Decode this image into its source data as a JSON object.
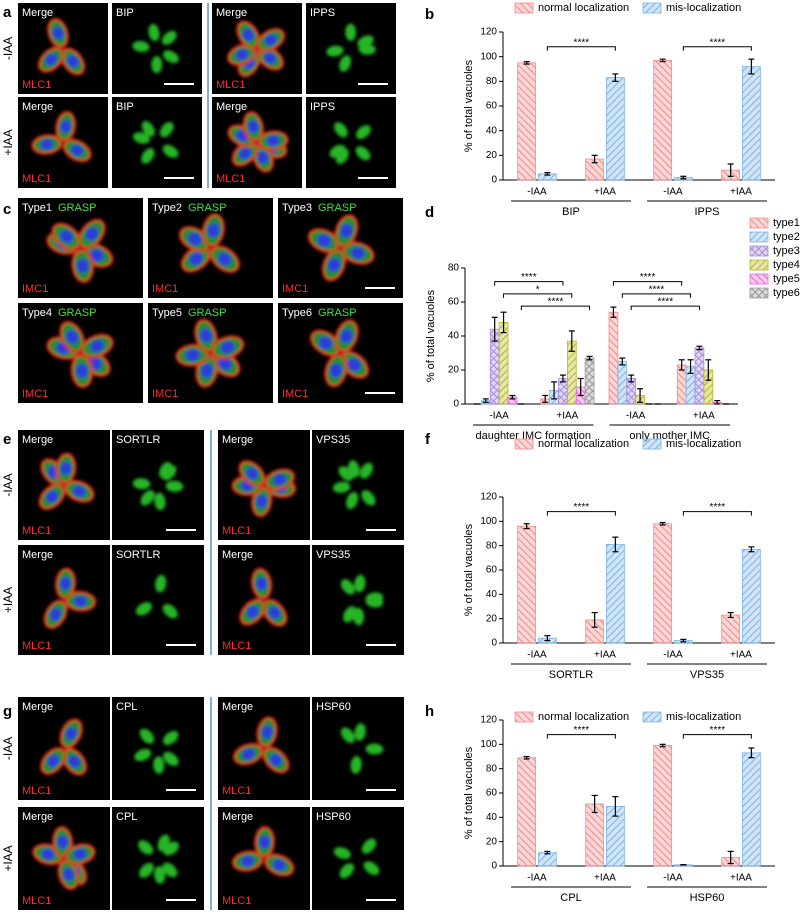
{
  "image_panels": [
    {
      "letter": "a",
      "row_labels": [
        "-IAA",
        "+IAA"
      ],
      "rows": [
        [
          {
            "label": "Merge",
            "marker": "MLC1"
          },
          {
            "label": "BIP"
          },
          {
            "label": "Merge",
            "marker": "MLC1"
          },
          {
            "label": "IPPS"
          }
        ],
        [
          {
            "label": "Merge",
            "marker": "MLC1"
          },
          {
            "label": "BIP"
          },
          {
            "label": "Merge",
            "marker": "MLC1"
          },
          {
            "label": "IPPS"
          }
        ]
      ]
    },
    {
      "letter": "c",
      "rows": [
        [
          {
            "label": "Type1",
            "stain": "GRASP",
            "marker": "IMC1"
          },
          {
            "label": "Type2",
            "stain": "GRASP",
            "marker": "IMC1"
          },
          {
            "label": "Type3",
            "stain": "GRASP",
            "marker": "IMC1"
          }
        ],
        [
          {
            "label": "Type4",
            "stain": "GRASP",
            "marker": "IMC1"
          },
          {
            "label": "Type5",
            "stain": "GRASP",
            "marker": "IMC1"
          },
          {
            "label": "Type6",
            "stain": "GRASP",
            "marker": "IMC1"
          }
        ]
      ]
    },
    {
      "letter": "e",
      "row_labels": [
        "-IAA",
        "+IAA"
      ],
      "rows": [
        [
          {
            "label": "Merge",
            "marker": "MLC1"
          },
          {
            "label": "SORTLR"
          },
          {
            "label": "Merge",
            "marker": "MLC1"
          },
          {
            "label": "VPS35"
          }
        ],
        [
          {
            "label": "Merge",
            "marker": "MLC1"
          },
          {
            "label": "SORTLR"
          },
          {
            "label": "Merge",
            "marker": "MLC1"
          },
          {
            "label": "VPS35"
          }
        ]
      ]
    },
    {
      "letter": "g",
      "row_labels": [
        "-IAA",
        "+IAA"
      ],
      "rows": [
        [
          {
            "label": "Merge",
            "marker": "MLC1"
          },
          {
            "label": "CPL"
          },
          {
            "label": "Merge",
            "marker": "MLC1"
          },
          {
            "label": "HSP60"
          }
        ],
        [
          {
            "label": "Merge",
            "marker": "MLC1"
          },
          {
            "label": "CPL"
          },
          {
            "label": "Merge",
            "marker": "MLC1"
          },
          {
            "label": "HSP60"
          }
        ]
      ]
    }
  ],
  "chart_data": [
    {
      "type": "bar",
      "panel": "b",
      "y_label": "% of total vacuoles",
      "categories": [
        "-IAA",
        "+IAA",
        "-IAA",
        "+IAA"
      ],
      "groups": [
        "BIP",
        "IPPS"
      ],
      "series": [
        {
          "name": "normal localization",
          "color": "#f28c8c",
          "values": [
            95,
            17,
            97,
            8
          ],
          "errors": [
            1,
            3,
            1,
            5
          ]
        },
        {
          "name": "mis-localization",
          "color": "#7fb4e6",
          "values": [
            5,
            83,
            2,
            92
          ],
          "errors": [
            1,
            3,
            1,
            6
          ]
        }
      ],
      "comparisons": [
        {
          "label": "****",
          "series": 1,
          "categories": [
            0,
            1
          ]
        },
        {
          "label": "****",
          "series": 1,
          "categories": [
            2,
            3
          ]
        }
      ],
      "ylim": [
        0,
        120
      ],
      "yticks": [
        0,
        20,
        40,
        60,
        80,
        100,
        120
      ],
      "legend": "top"
    },
    {
      "type": "bar",
      "panel": "d",
      "y_label": "% of total vacuoles",
      "categories": [
        "-IAA",
        "+IAA",
        "-IAA",
        "+IAA"
      ],
      "groups": [
        "daughter IMC formation",
        "only mother IMC"
      ],
      "series": [
        {
          "name": "type1",
          "color": "#f28c8c",
          "values": [
            0,
            3,
            54,
            23
          ],
          "errors": [
            0,
            2,
            3,
            3
          ]
        },
        {
          "name": "type2",
          "color": "#7fb4e6",
          "values": [
            2,
            8,
            25,
            22
          ],
          "errors": [
            1,
            5,
            2,
            4
          ]
        },
        {
          "name": "type3",
          "color": "#a98ee0",
          "values": [
            44,
            15,
            15,
            33
          ],
          "errors": [
            7,
            2,
            2,
            1
          ]
        },
        {
          "name": "type4",
          "color": "#b8b820",
          "values": [
            48,
            37,
            5,
            20
          ],
          "errors": [
            6,
            6,
            4,
            6
          ]
        },
        {
          "name": "type5",
          "color": "#e866d8",
          "values": [
            4,
            10,
            0,
            1
          ],
          "errors": [
            1,
            5,
            0,
            1
          ]
        },
        {
          "name": "type6",
          "color": "#999999",
          "values": [
            0,
            27,
            0,
            0
          ],
          "errors": [
            0,
            1,
            0,
            0
          ]
        }
      ],
      "comparisons": [
        {
          "label": "****",
          "series": 2,
          "categories": [
            0,
            1
          ]
        },
        {
          "label": "*",
          "series": 3,
          "categories": [
            0,
            1
          ]
        },
        {
          "label": "****",
          "series": 5,
          "categories": [
            0,
            1
          ]
        },
        {
          "label": "****",
          "series": 0,
          "categories": [
            2,
            3
          ]
        },
        {
          "label": "****",
          "series": 1,
          "categories": [
            2,
            3
          ]
        },
        {
          "label": "****",
          "series": 2,
          "categories": [
            2,
            3
          ]
        }
      ],
      "ylim": [
        0,
        80
      ],
      "yticks": [
        0,
        20,
        40,
        60,
        80
      ],
      "legend": "right"
    },
    {
      "type": "bar",
      "panel": "f",
      "y_label": "% of total vacuoles",
      "categories": [
        "-IAA",
        "+IAA",
        "-IAA",
        "+IAA"
      ],
      "groups": [
        "SORTLR",
        "VPS35"
      ],
      "series": [
        {
          "name": "normal localization",
          "color": "#f28c8c",
          "values": [
            96,
            19,
            98,
            23
          ],
          "errors": [
            2,
            6,
            1,
            2
          ]
        },
        {
          "name": "mis-localization",
          "color": "#7fb4e6",
          "values": [
            4,
            81,
            2,
            77
          ],
          "errors": [
            2,
            6,
            1,
            2
          ]
        }
      ],
      "comparisons": [
        {
          "label": "****",
          "series": 1,
          "categories": [
            0,
            1
          ]
        },
        {
          "label": "****",
          "series": 1,
          "categories": [
            2,
            3
          ]
        }
      ],
      "ylim": [
        0,
        120
      ],
      "yticks": [
        0,
        20,
        40,
        60,
        80,
        100,
        120
      ],
      "legend": "top"
    },
    {
      "type": "bar",
      "panel": "h",
      "y_label": "% of total vacuoles",
      "categories": [
        "-IAA",
        "+IAA",
        "-IAA",
        "+IAA"
      ],
      "groups": [
        "CPL",
        "HSP60"
      ],
      "series": [
        {
          "name": "normal localization",
          "color": "#f28c8c",
          "values": [
            89,
            51,
            99,
            7
          ],
          "errors": [
            1,
            7,
            1,
            5
          ]
        },
        {
          "name": "mis-localization",
          "color": "#7fb4e6",
          "values": [
            11,
            49,
            1,
            93
          ],
          "errors": [
            1,
            8,
            0,
            4
          ]
        }
      ],
      "comparisons": [
        {
          "label": "****",
          "series": 1,
          "categories": [
            0,
            1
          ]
        },
        {
          "label": "****",
          "series": 1,
          "categories": [
            2,
            3
          ]
        }
      ],
      "ylim": [
        0,
        120
      ],
      "yticks": [
        0,
        20,
        40,
        60,
        80,
        100,
        120
      ],
      "legend": "top"
    }
  ]
}
